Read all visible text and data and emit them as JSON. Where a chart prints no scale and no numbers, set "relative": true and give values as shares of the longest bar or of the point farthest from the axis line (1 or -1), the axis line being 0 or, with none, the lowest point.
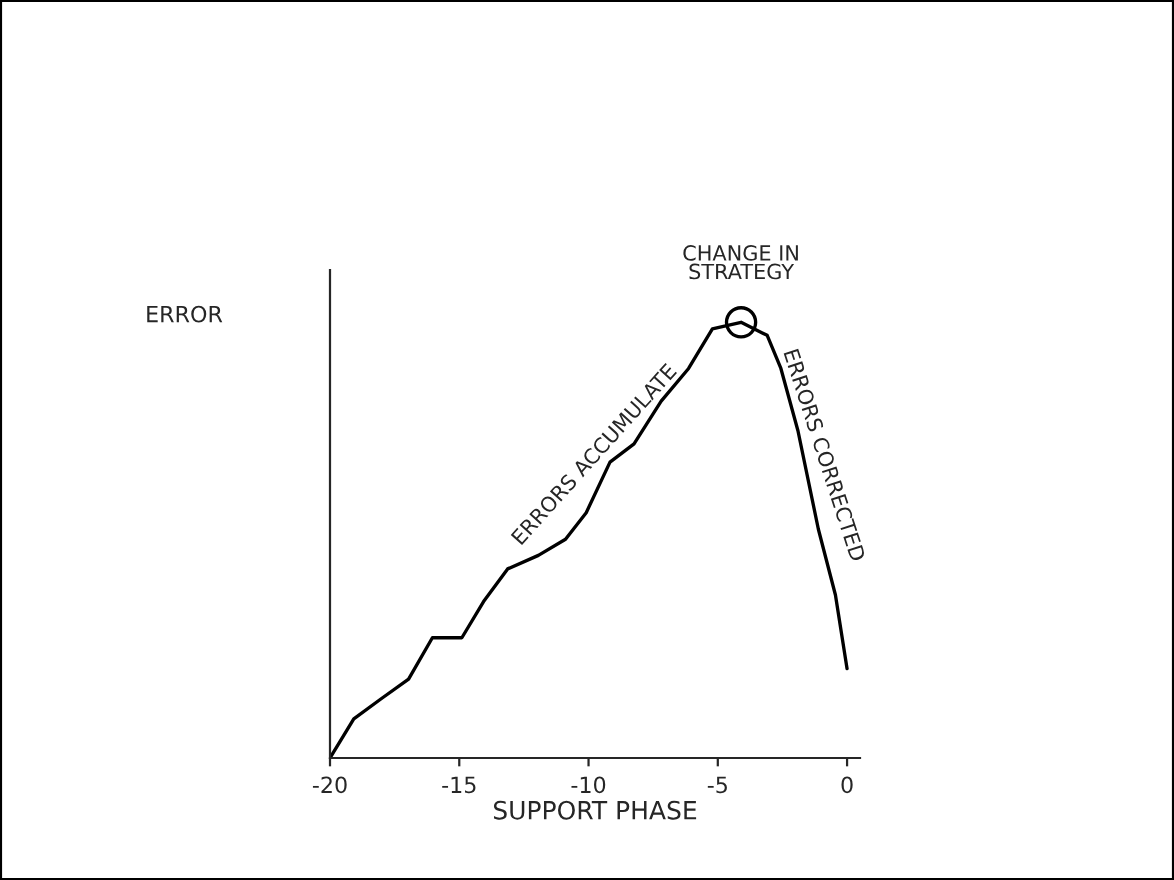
{
  "chart_data": {
    "type": "line",
    "relative": true,
    "xlabel": "SUPPORT PHASE",
    "ylabel": "ERROR",
    "xlim": [
      -20,
      0.5
    ],
    "xticks": [
      -20,
      -15,
      -10,
      -5,
      0
    ],
    "grid": false,
    "legend": false,
    "series": [
      {
        "color": "#000000",
        "marker": "none",
        "x": [
          -20,
          -19.08,
          -18.02,
          -16.96,
          -16.04,
          -14.9,
          -14.06,
          -13.13,
          -11.94,
          -10.89,
          -10.09,
          -9.17,
          -8.24,
          -7.19,
          -6.13,
          -5.21,
          -4.1,
          -3.09,
          -2.56,
          -1.9,
          -1.11,
          -0.45,
          0
        ],
        "values": [
          0,
          0.09,
          0.136,
          0.181,
          0.276,
          0.276,
          0.359,
          0.434,
          0.465,
          0.502,
          0.563,
          0.679,
          0.721,
          0.819,
          0.894,
          0.985,
          1.0,
          0.97,
          0.894,
          0.751,
          0.525,
          0.374,
          0.205
        ]
      },
      {
        "type": "scatter",
        "color": "#000000",
        "marker": "circle",
        "x": [
          -4.1
        ],
        "values": [
          1.0
        ]
      }
    ],
    "annotations": [
      {
        "text": "CHANGE IN\nSTRATEGY",
        "x": -4.1,
        "y": 1.0
      },
      "ERRORS ACCUMULATE",
      "ERRORS CORRECTED"
    ]
  }
}
